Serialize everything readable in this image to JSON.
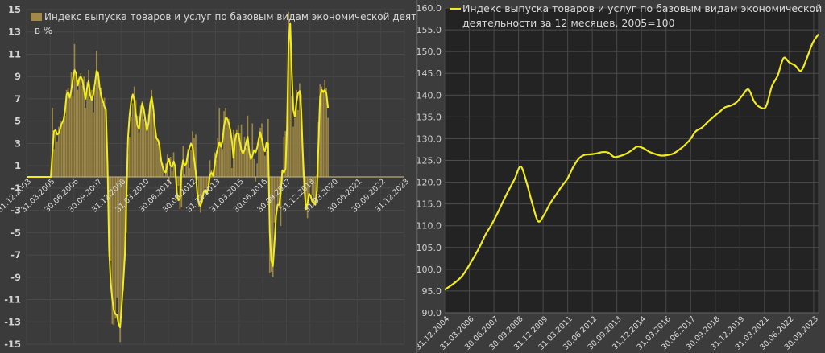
{
  "chart_data": [
    {
      "type": "bar",
      "title": "",
      "legend": {
        "label": "Индекс выпуска товаров и услуг по базовым видам экономической деятельности, г/г",
        "label_line2": "в %",
        "position": "top-left-inside"
      },
      "xlabel": "",
      "ylabel": "",
      "ylim": [
        -15,
        15
      ],
      "yticks": [
        15,
        13,
        11,
        9,
        7,
        5,
        3,
        1,
        -1,
        -3,
        -5,
        -7,
        -9,
        -11,
        -13,
        -15
      ],
      "xtick_labels": [
        "31.12.2003",
        "31.03.2005",
        "30.06.2006",
        "30.09.2007",
        "31.12.2008",
        "31.03.2010",
        "30.06.2011",
        "30.09.2012",
        "31.12.2013",
        "31.03.2015",
        "30.06.2016",
        "30.09.2017",
        "31.12.2018",
        "31.03.2020",
        "30.06.2021",
        "30.09.2022",
        "31.12.2023"
      ],
      "grid": true,
      "x_start": "2003-12",
      "frequency": "monthly",
      "bar_color": "#a08a45",
      "line_color": "#f2ec1c",
      "series": [
        {
          "name": "bars_yoy_pct",
          "values": [
            0,
            0,
            0,
            0,
            0,
            0,
            0,
            0,
            0,
            0,
            0,
            0,
            0,
            0,
            0,
            0,
            6.2,
            2.5,
            4.0,
            3.2,
            4.5,
            5.0,
            4.6,
            5.0,
            5.5,
            7.8,
            8.0,
            7.4,
            9.4,
            7.2,
            11.9,
            9.3,
            7.8,
            9.0,
            9.3,
            8.2,
            9.0,
            6.2,
            8.5,
            9.6,
            7.0,
            7.8,
            5.8,
            8.0,
            11.3,
            9.5,
            7.6,
            8.0,
            6.5,
            7.1,
            6.2,
            1.4,
            -7.2,
            -7.5,
            -13.2,
            -13.3,
            -12.7,
            -10.8,
            -13.5,
            -14.8,
            -12.5,
            -10.2,
            -7.5,
            -5.0,
            2.0,
            3.6,
            5.4,
            6.6,
            8.1,
            6.9,
            5.5,
            4.0,
            6.4,
            6.8,
            5.2,
            4.8,
            4.2,
            5.6,
            6.7,
            7.8,
            5.7,
            4.5,
            3.6,
            3.0,
            3.3,
            1.8,
            1.2,
            0.1,
            1.2,
            2.0,
            -0.6,
            1.8,
            0.5,
            2.2,
            0.9,
            -2.0,
            -0.8,
            -2.9,
            -2.7,
            2.8,
            0.2,
            1.4,
            2.5,
            0.8,
            2.4,
            4.1,
            3.5,
            3.8,
            -0.3,
            -2.7,
            -3.2,
            -2.0,
            -1.6,
            -1.0,
            -1.5,
            -1.3,
            1.5,
            0.6,
            0.2,
            2.2,
            1.5,
            3.5,
            6.2,
            3.2,
            2.5,
            5.9,
            6.2,
            5.4,
            5.2,
            4.3,
            0.8,
            4.2,
            3.8,
            4.2,
            4.6,
            3.9,
            4.7,
            2.4,
            3.6,
            2.6,
            5.5,
            2.5,
            2.1,
            4.8,
            1.6,
            -0.4,
            1.2,
            3.4,
            4.4,
            4.8,
            3.0,
            1.9,
            2.3,
            5.2,
            -8.6,
            -8.5,
            -9.0,
            -4.1,
            -1.3,
            -2.6,
            -2.8,
            -4.4,
            -0.5,
            3.6,
            4.1,
            5.3,
            14.8,
            13.0,
            7.2,
            4.5,
            5.3,
            7.8,
            6.0,
            8.4,
            7.4,
            2.5,
            -1.5,
            -2.7,
            -3.7,
            -1.9,
            -0.4,
            -1.6,
            -2.6,
            -2.3,
            0.3,
            4.9,
            8.3,
            8.1,
            7.8,
            8.7,
            8.0,
            5.3
          ]
        },
        {
          "name": "line_smoothed",
          "values": [
            0,
            0,
            0,
            0,
            0,
            0,
            0,
            0,
            0,
            0,
            0,
            0,
            0,
            0,
            0,
            0,
            2.2,
            4.1,
            4.2,
            3.8,
            3.9,
            4.4,
            4.8,
            5.1,
            5.9,
            7.4,
            7.6,
            7.1,
            7.8,
            8.8,
            9.6,
            9.3,
            8.2,
            8.8,
            9.0,
            8.7,
            7.8,
            7.0,
            8.0,
            8.6,
            7.3,
            6.9,
            7.4,
            8.4,
            9.5,
            9.3,
            8.0,
            7.2,
            6.8,
            6.3,
            6.0,
            1.0,
            -6.5,
            -9.5,
            -11.0,
            -12.0,
            -12.3,
            -12.4,
            -13.2,
            -13.5,
            -11.5,
            -9.5,
            -7.0,
            -2.0,
            3.5,
            5.5,
            6.8,
            7.4,
            6.9,
            5.6,
            4.6,
            4.3,
            5.6,
            6.6,
            6.1,
            5.1,
            4.2,
            4.8,
            6.5,
            7.2,
            6.2,
            4.6,
            3.5,
            3.3,
            2.8,
            1.5,
            0.9,
            0.5,
            0.4,
            1.2,
            1.6,
            1.0,
            0.9,
            1.4,
            0.9,
            -1.4,
            -2.1,
            -2.0,
            0.6,
            1.5,
            1.0,
            1.2,
            2.1,
            2.6,
            3.0,
            2.7,
            1.6,
            0.5,
            -1.5,
            -2.4,
            -2.6,
            -2.2,
            -1.4,
            -1.2,
            -1.5,
            -1.0,
            0.1,
            0.4,
            0.1,
            1.0,
            2.0,
            2.6,
            3.1,
            2.7,
            3.2,
            4.6,
            5.3,
            5.2,
            4.8,
            4.2,
            3.2,
            1.7,
            3.3,
            3.9,
            3.9,
            3.2,
            2.4,
            2.1,
            2.4,
            3.1,
            3.6,
            2.2,
            1.6,
            1.9,
            2.4,
            2.2,
            2.6,
            3.4,
            4.0,
            3.4,
            2.6,
            2.3,
            3.1,
            3.0,
            -5.0,
            -7.5,
            -8.0,
            -6.0,
            -3.5,
            -2.5,
            -2.5,
            -1.5,
            0.6,
            0.4,
            0.7,
            4.5,
            12.0,
            13.8,
            9.5,
            6.0,
            5.4,
            6.7,
            7.5,
            7.7,
            6.0,
            2.2,
            -1.0,
            -2.9,
            -2.4,
            -1.5,
            -1.7,
            -2.2,
            -2.3,
            -2.5,
            -1.2,
            3.0,
            7.2,
            7.8,
            7.6,
            7.8,
            7.5,
            6.2
          ]
        }
      ]
    },
    {
      "type": "line",
      "title": "",
      "legend": {
        "label": "Индекс выпуска товаров и услуг по базовым видам экономической",
        "label_line2": "деятельности за 12 месяцев, 2005=100",
        "position": "top-left-inside"
      },
      "xlabel": "",
      "ylabel": "",
      "ylim": [
        90,
        160
      ],
      "yticks": [
        "160.0",
        "155.0",
        "150.0",
        "145.0",
        "140.0",
        "135.0",
        "130.0",
        "125.0",
        "120.0",
        "115.0",
        "110.0",
        "105.0",
        "100.0",
        "95.0",
        "90.0"
      ],
      "xtick_labels": [
        "31.12.2004",
        "31.03.2006",
        "30.06.2007",
        "30.09.2008",
        "31.12.2009",
        "31.03.2011",
        "30.06.2012",
        "30.09.2013",
        "31.12.2014",
        "31.03.2016",
        "30.06.2017",
        "30.09.2018",
        "31.12.2019",
        "31.03.2021",
        "30.06.2022",
        "30.09.2023"
      ],
      "grid": true,
      "x_start": "2004-12",
      "frequency": "quarterly",
      "line_color": "#f2ec1c",
      "series": [
        {
          "name": "index_12m_2005_100",
          "values": [
            95.3,
            96.2,
            97.2,
            98.5,
            100.5,
            102.8,
            105.2,
            108.0,
            110.2,
            112.8,
            115.6,
            118.3,
            120.8,
            123.6,
            120.0,
            115.0,
            111.0,
            112.5,
            115.0,
            117.0,
            119.0,
            120.8,
            123.5,
            125.5,
            126.3,
            126.4,
            126.6,
            126.9,
            126.8,
            125.8,
            126.0,
            126.5,
            127.3,
            128.2,
            127.8,
            127.0,
            126.5,
            126.1,
            126.2,
            126.5,
            127.3,
            128.4,
            129.8,
            131.7,
            132.5,
            133.8,
            135.0,
            136.1,
            137.2,
            137.6,
            138.4,
            140.0,
            141.3,
            138.5,
            137.2,
            137.4,
            142.0,
            144.5,
            148.5,
            147.5,
            146.8,
            145.6,
            148.5,
            152.0,
            154.0
          ]
        }
      ]
    }
  ]
}
